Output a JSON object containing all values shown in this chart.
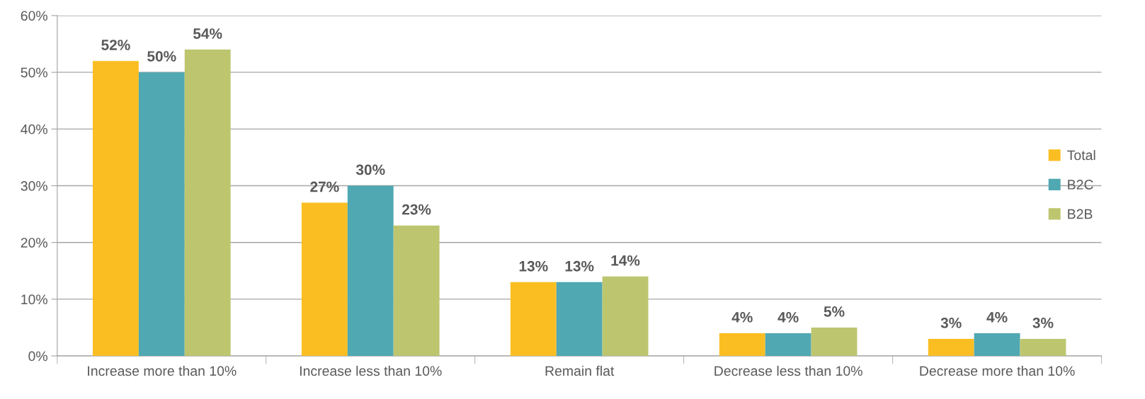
{
  "chart_data": {
    "type": "bar",
    "categories": [
      "Increase more than 10%",
      "Increase less than 10%",
      "Remain flat",
      "Decrease less than 10%",
      "Decrease more than 10%"
    ],
    "series": [
      {
        "name": "Total",
        "color": "#fbbe22",
        "values": [
          52,
          27,
          13,
          4,
          3
        ],
        "value_labels": [
          "52%",
          "27%",
          "13%",
          "4%",
          "3%"
        ]
      },
      {
        "name": "B2C",
        "color": "#4fa8b2",
        "values": [
          50,
          30,
          13,
          4,
          4
        ],
        "value_labels": [
          "50%",
          "30%",
          "13%",
          "4%",
          "4%"
        ]
      },
      {
        "name": "B2B",
        "color": "#bdc66f",
        "values": [
          54,
          23,
          14,
          5,
          3
        ],
        "value_labels": [
          "54%",
          "23%",
          "14%",
          "5%",
          "3%"
        ]
      }
    ],
    "ylim": [
      0,
      60
    ],
    "yticks": [
      {
        "value": 0,
        "label": "0%"
      },
      {
        "value": 10,
        "label": "10%"
      },
      {
        "value": 20,
        "label": "20%"
      },
      {
        "value": 30,
        "label": "30%"
      },
      {
        "value": 40,
        "label": "40%"
      },
      {
        "value": 50,
        "label": "50%"
      },
      {
        "value": 60,
        "label": "60%"
      }
    ],
    "grid": "y",
    "legend": "right"
  }
}
